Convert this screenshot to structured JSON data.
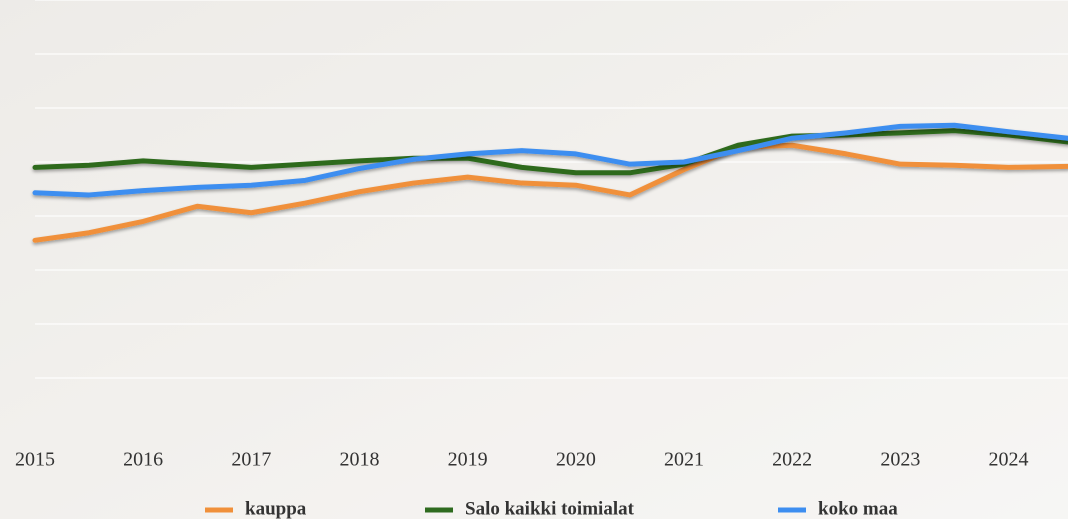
{
  "chart_data": {
    "type": "line",
    "x": [
      2015,
      2015.5,
      2016,
      2016.5,
      2017,
      2017.5,
      2018,
      2018.5,
      2019,
      2019.5,
      2020,
      2020.5,
      2021,
      2021.5,
      2022,
      2022.5,
      2023,
      2023.5,
      2024,
      2024.55
    ],
    "xlim": [
      2015,
      2024.55
    ],
    "xticks": [
      2015,
      2016,
      2017,
      2018,
      2019,
      2020,
      2021,
      2022,
      2023,
      2024
    ],
    "ylim": [
      0,
      8
    ],
    "yticks": [
      1,
      2,
      3,
      4,
      5,
      6,
      7,
      8
    ],
    "grid": true,
    "legend": "bottom",
    "series": [
      {
        "name": "kauppa",
        "color": "#f0903a",
        "values": [
          3.55,
          3.69,
          3.9,
          4.18,
          4.06,
          4.24,
          4.45,
          4.61,
          4.72,
          4.61,
          4.57,
          4.39,
          4.86,
          5.27,
          5.31,
          5.15,
          4.96,
          4.94,
          4.9,
          4.92
        ]
      },
      {
        "name": "Salo kaikki toimialat",
        "color": "#2e6b1f",
        "values": [
          4.9,
          4.94,
          5.02,
          4.96,
          4.9,
          4.96,
          5.02,
          5.07,
          5.07,
          4.9,
          4.8,
          4.8,
          4.96,
          5.31,
          5.48,
          5.5,
          5.54,
          5.58,
          5.5,
          5.37
        ]
      },
      {
        "name": "koko maa",
        "color": "#3d8ef0",
        "values": [
          4.43,
          4.39,
          4.47,
          4.53,
          4.57,
          4.66,
          4.88,
          5.05,
          5.15,
          5.21,
          5.15,
          4.96,
          5.0,
          5.21,
          5.44,
          5.54,
          5.66,
          5.68,
          5.56,
          5.44
        ]
      }
    ]
  }
}
